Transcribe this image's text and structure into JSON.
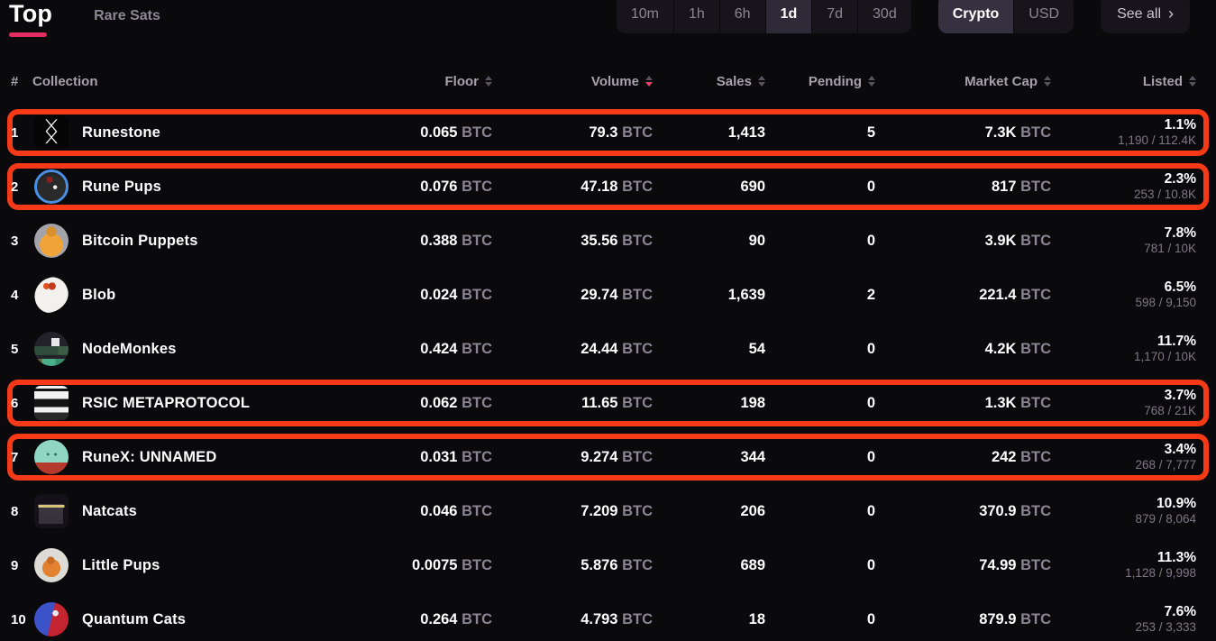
{
  "tabs": {
    "top": "Top",
    "rare_sats": "Rare Sats"
  },
  "controls": {
    "time_filters": [
      {
        "label": "10m",
        "active": false
      },
      {
        "label": "1h",
        "active": false
      },
      {
        "label": "6h",
        "active": false
      },
      {
        "label": "1d",
        "active": true
      },
      {
        "label": "7d",
        "active": false
      },
      {
        "label": "30d",
        "active": false
      }
    ],
    "currency": [
      {
        "label": "Crypto",
        "active": true
      },
      {
        "label": "USD",
        "active": false
      }
    ],
    "see_all": "See all",
    "see_all_chevron": "›"
  },
  "table": {
    "headers": {
      "rank": "#",
      "collection": "Collection",
      "floor": "Floor",
      "volume": "Volume",
      "sales": "Sales",
      "pending": "Pending",
      "market_cap": "Market Cap",
      "listed": "Listed"
    },
    "sort": {
      "column": "volume",
      "direction": "desc"
    },
    "unit": "BTC",
    "rows": [
      {
        "rank": "1",
        "name": "Runestone",
        "icon": "runestone",
        "icon_glyph": "ᛝ",
        "floor": "0.065",
        "volume": "79.3",
        "sales": "1,413",
        "pending": "5",
        "market_cap": "7.3K",
        "listed_pct": "1.1%",
        "listed_detail": "1,190 / 112.4K",
        "highlighted": true
      },
      {
        "rank": "2",
        "name": "Rune Pups",
        "icon": "rune-pups",
        "icon_glyph": "",
        "floor": "0.076",
        "volume": "47.18",
        "sales": "690",
        "pending": "0",
        "market_cap": "817",
        "listed_pct": "2.3%",
        "listed_detail": "253 / 10.8K",
        "highlighted": true
      },
      {
        "rank": "3",
        "name": "Bitcoin Puppets",
        "icon": "bitcoin-puppets",
        "icon_glyph": "",
        "floor": "0.388",
        "volume": "35.56",
        "sales": "90",
        "pending": "0",
        "market_cap": "3.9K",
        "listed_pct": "7.8%",
        "listed_detail": "781 / 10K",
        "highlighted": false
      },
      {
        "rank": "4",
        "name": "Blob",
        "icon": "blob",
        "icon_glyph": "",
        "floor": "0.024",
        "volume": "29.74",
        "sales": "1,639",
        "pending": "2",
        "market_cap": "221.4",
        "listed_pct": "6.5%",
        "listed_detail": "598 / 9,150",
        "highlighted": false
      },
      {
        "rank": "5",
        "name": "NodeMonkes",
        "icon": "nodemonkes",
        "icon_glyph": "",
        "floor": "0.424",
        "volume": "24.44",
        "sales": "54",
        "pending": "0",
        "market_cap": "4.2K",
        "listed_pct": "11.7%",
        "listed_detail": "1,170 / 10K",
        "highlighted": false
      },
      {
        "rank": "6",
        "name": "RSIC METAPROTOCOL",
        "icon": "rsic",
        "icon_glyph": "",
        "floor": "0.062",
        "volume": "11.65",
        "sales": "198",
        "pending": "0",
        "market_cap": "1.3K",
        "listed_pct": "3.7%",
        "listed_detail": "768 / 21K",
        "highlighted": true
      },
      {
        "rank": "7",
        "name": "RuneX: UNNAMED",
        "icon": "runex",
        "icon_glyph": "",
        "floor": "0.031",
        "volume": "9.274",
        "sales": "344",
        "pending": "0",
        "market_cap": "242",
        "listed_pct": "3.4%",
        "listed_detail": "268 / 7,777",
        "highlighted": true
      },
      {
        "rank": "8",
        "name": "Natcats",
        "icon": "natcats",
        "icon_glyph": "",
        "floor": "0.046",
        "volume": "7.209",
        "sales": "206",
        "pending": "0",
        "market_cap": "370.9",
        "listed_pct": "10.9%",
        "listed_detail": "879 / 8,064",
        "highlighted": false
      },
      {
        "rank": "9",
        "name": "Little Pups",
        "icon": "little-pups",
        "icon_glyph": "",
        "floor": "0.0075",
        "volume": "5.876",
        "sales": "689",
        "pending": "0",
        "market_cap": "74.99",
        "listed_pct": "11.3%",
        "listed_detail": "1,128 / 9,998",
        "highlighted": false
      },
      {
        "rank": "10",
        "name": "Quantum Cats",
        "icon": "quantum-cats",
        "icon_glyph": "",
        "floor": "0.264",
        "volume": "4.793",
        "sales": "18",
        "pending": "0",
        "market_cap": "879.9",
        "listed_pct": "7.6%",
        "listed_detail": "253 / 3,333",
        "highlighted": false
      }
    ]
  },
  "colors": {
    "background": "#0a090c",
    "accent_pink": "#e12d5f",
    "sort_active": "#e8436d",
    "annotation_red": "#f63a17",
    "muted_text": "#8b8794",
    "button_bg": "#17141b",
    "button_active_bg": "#2e2a37"
  },
  "annotations": {
    "highlighted_row_ranks": [
      1,
      2,
      6,
      7
    ]
  }
}
